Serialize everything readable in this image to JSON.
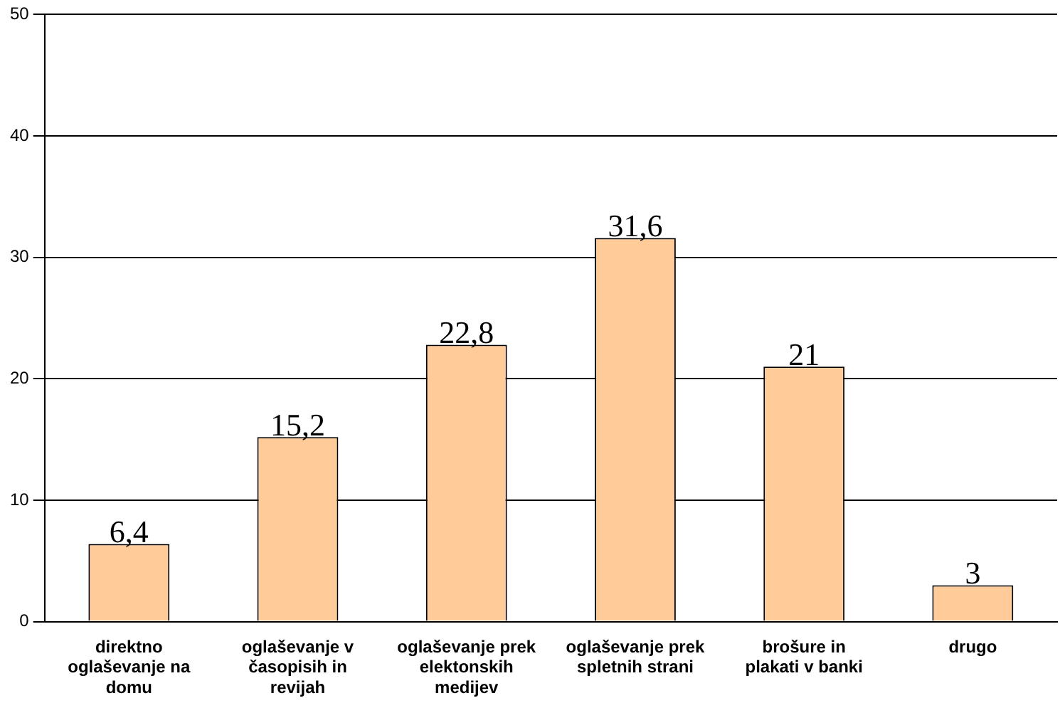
{
  "chart_data": {
    "type": "bar",
    "categories": [
      "direktno oglaševanje na domu",
      "oglaševanje v časopisih in revijah",
      "oglaševanje prek elektonskih medijev",
      "oglaševanje prek spletnih strani",
      "brošure in plakati v banki",
      "drugo"
    ],
    "values": [
      6.4,
      15.2,
      22.8,
      31.6,
      21,
      3
    ],
    "value_labels": [
      "6,4",
      "15,2",
      "22,8",
      "31,6",
      "21",
      "3"
    ],
    "color": "#ffcc99",
    "ylim": [
      0,
      50
    ],
    "yticks": [
      0,
      10,
      20,
      30,
      40,
      50
    ],
    "grid": "y"
  }
}
